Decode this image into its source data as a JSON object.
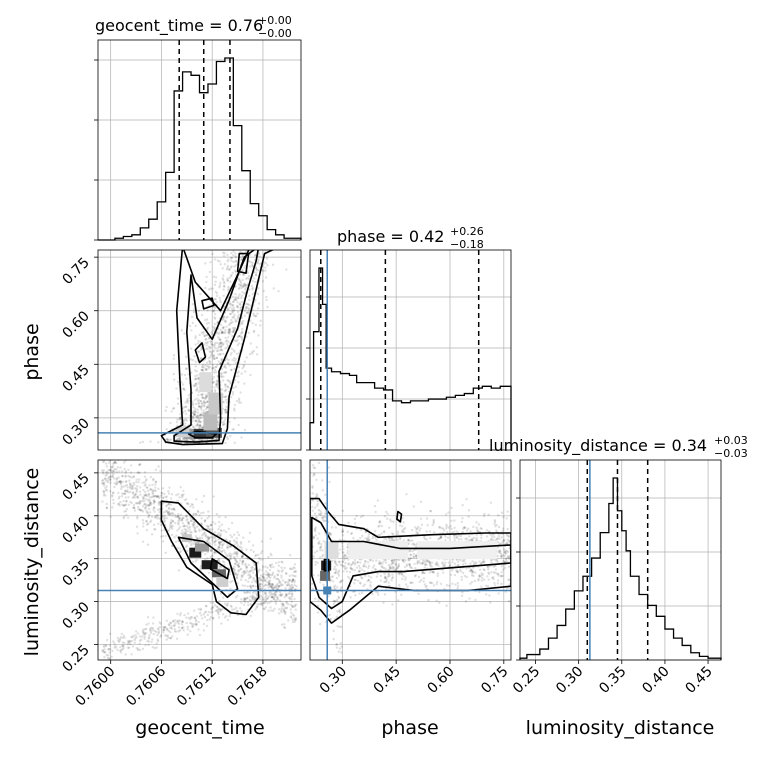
{
  "chart_data": {
    "type": "corner",
    "parameters": [
      "geocent_time",
      "phase",
      "luminosity_distance"
    ],
    "truth_color": "#4682b4",
    "truths": {
      "geocent_time": null,
      "phase": 0.258,
      "luminosity_distance": 0.313
    },
    "titles": [
      {
        "param": "geocent_time",
        "text": "geocent_time = 0.76",
        "sup": "+0.00",
        "sub": "−0.00"
      },
      {
        "param": "phase",
        "text": "phase = 0.42",
        "sup": "+0.26",
        "sub": "−0.18"
      },
      {
        "param": "luminosity_distance",
        "text": "luminosity_distance = 0.34",
        "sup": "+0.03",
        "sub": "−0.03"
      }
    ],
    "axes": {
      "geocent_time": {
        "label": "geocent_time",
        "range": [
          0.75985,
          0.76225
        ],
        "ticks": [
          0.76,
          0.7606,
          0.7612,
          0.7618
        ],
        "tick_labels": [
          "0.7600",
          "0.7606",
          "0.7612",
          "0.7618"
        ]
      },
      "phase": {
        "label": "phase",
        "range": [
          0.21,
          0.77
        ],
        "ticks": [
          0.3,
          0.45,
          0.6,
          0.75
        ],
        "tick_labels": [
          "0.30",
          "0.45",
          "0.60",
          "0.75"
        ]
      },
      "luminosity_distance": {
        "label": "luminosity_distance",
        "range": [
          0.232,
          0.465
        ],
        "ticks": [
          0.25,
          0.3,
          0.35,
          0.4,
          0.45
        ],
        "tick_labels": [
          "0.25",
          "0.30",
          "0.35",
          "0.40",
          "0.45"
        ]
      }
    },
    "histograms": {
      "geocent_time": {
        "edges": [
          0.75985,
          0.76005,
          0.76015,
          0.76025,
          0.76035,
          0.76045,
          0.76055,
          0.76065,
          0.76075,
          0.76085,
          0.76095,
          0.76105,
          0.76115,
          0.76125,
          0.76135,
          0.76145,
          0.76155,
          0.76165,
          0.76175,
          0.76185,
          0.76195,
          0.76205,
          0.76225
        ],
        "counts": [
          0,
          1,
          2,
          3,
          7,
          12,
          22,
          39,
          86,
          97,
          95,
          85,
          90,
          103,
          105,
          66,
          40,
          21,
          14,
          6,
          3,
          1
        ],
        "quantiles": [
          0.76081,
          0.7611,
          0.76141
        ]
      },
      "phase": {
        "edges": [
          0.21,
          0.22,
          0.235,
          0.245,
          0.255,
          0.27,
          0.295,
          0.32,
          0.34,
          0.365,
          0.39,
          0.415,
          0.44,
          0.465,
          0.49,
          0.515,
          0.54,
          0.565,
          0.59,
          0.615,
          0.64,
          0.665,
          0.69,
          0.715,
          0.74,
          0.77
        ],
        "counts": [
          15,
          65,
          100,
          80,
          45,
          43,
          42,
          41,
          37,
          37,
          34,
          33,
          27,
          26,
          27,
          27,
          28,
          28,
          29,
          30,
          31,
          34,
          35,
          34,
          35
        ],
        "quantiles": [
          0.24,
          0.42,
          0.68
        ]
      },
      "luminosity_distance": {
        "edges": [
          0.232,
          0.24,
          0.255,
          0.265,
          0.275,
          0.285,
          0.295,
          0.305,
          0.315,
          0.325,
          0.335,
          0.34,
          0.345,
          0.35,
          0.355,
          0.36,
          0.37,
          0.38,
          0.39,
          0.4,
          0.41,
          0.42,
          0.43,
          0.44,
          0.45,
          0.465
        ],
        "counts": [
          1,
          3,
          6,
          12,
          19,
          28,
          38,
          46,
          56,
          70,
          86,
          100,
          82,
          71,
          60,
          46,
          36,
          30,
          24,
          17,
          12,
          8,
          4,
          2,
          1
        ],
        "quantiles": [
          0.31,
          0.345,
          0.38
        ]
      }
    },
    "pairs": [
      {
        "x": "geocent_time",
        "y": "phase"
      },
      {
        "x": "geocent_time",
        "y": "luminosity_distance"
      },
      {
        "x": "phase",
        "y": "luminosity_distance"
      }
    ],
    "grid": true
  }
}
